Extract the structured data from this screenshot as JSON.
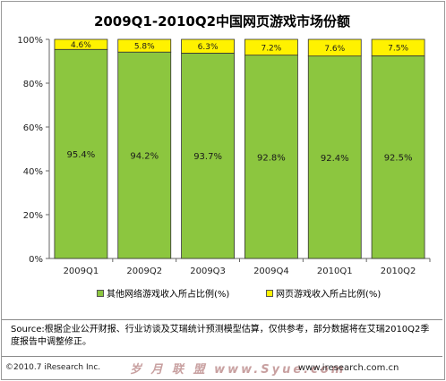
{
  "title": "2009Q1-2010Q2中国网页游戏市场份额",
  "colors": {
    "other": "#8cc63f",
    "webgame": "#fff200"
  },
  "legend": [
    {
      "label": "其他网络游戏收入所占比例(%)",
      "color": "#8cc63f"
    },
    {
      "label": "网页游戏收入所占比例(%)",
      "color": "#fff200"
    }
  ],
  "source": "Source:根据企业公开财报、行业访谈及艾瑞统计预测模型估算，仅供参考，部分数据将在艾瑞2010Q2季度报告中调整修正。",
  "footer": {
    "copyright": "©2010.7 iResearch Inc.",
    "watermark": "岁 月 联 盟 www.Syue.com",
    "website": "www.iresearch.com.cn"
  },
  "chart_data": {
    "type": "bar",
    "stacked": true,
    "title": "2009Q1-2010Q2中国网页游戏市场份额",
    "categories": [
      "2009Q1",
      "2009Q2",
      "2009Q3",
      "2009Q4",
      "2010Q1",
      "2010Q2"
    ],
    "series": [
      {
        "name": "其他网络游戏收入所占比例(%)",
        "values": [
          95.4,
          94.2,
          93.7,
          92.8,
          92.4,
          92.5
        ],
        "labels": [
          "95.4%",
          "94.2%",
          "93.7%",
          "92.8%",
          "92.4%",
          "92.5%"
        ]
      },
      {
        "name": "网页游戏收入所占比例(%)",
        "values": [
          4.6,
          5.8,
          6.3,
          7.2,
          7.6,
          7.5
        ],
        "labels": [
          "4.6%",
          "5.8%",
          "6.3%",
          "7.2%",
          "7.6%",
          "7.5%"
        ]
      }
    ],
    "yticks": [
      "0%",
      "20%",
      "40%",
      "60%",
      "80%",
      "100%"
    ],
    "ylim": [
      0,
      100
    ],
    "grid": false,
    "legend_position": "bottom"
  }
}
